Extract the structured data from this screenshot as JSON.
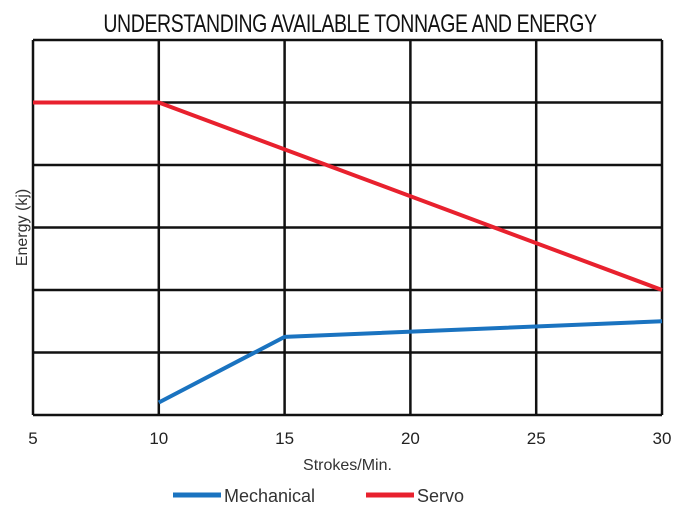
{
  "chart_data": {
    "type": "line",
    "title": "UNDERSTANDING AVAILABLE TONNAGE AND ENERGY",
    "xlabel": "Strokes/Min.",
    "ylabel": "Energy (kj)",
    "xlim": [
      5,
      30
    ],
    "ylim": [
      0,
      6
    ],
    "x_ticks": [
      5,
      10,
      15,
      20,
      25,
      30
    ],
    "y_gridlines": [
      0,
      1,
      2,
      3,
      4,
      5,
      6
    ],
    "y_tick_labels_shown": false,
    "grid": true,
    "legend_position": "bottom-center",
    "series": [
      {
        "name": "Mechanical",
        "color": "#1a73c0",
        "x": [
          10,
          15,
          30
        ],
        "y": [
          0.2,
          1.25,
          1.5
        ]
      },
      {
        "name": "Servo",
        "color": "#e8212e",
        "x": [
          5,
          10,
          30
        ],
        "y": [
          5,
          5,
          2
        ]
      }
    ]
  }
}
